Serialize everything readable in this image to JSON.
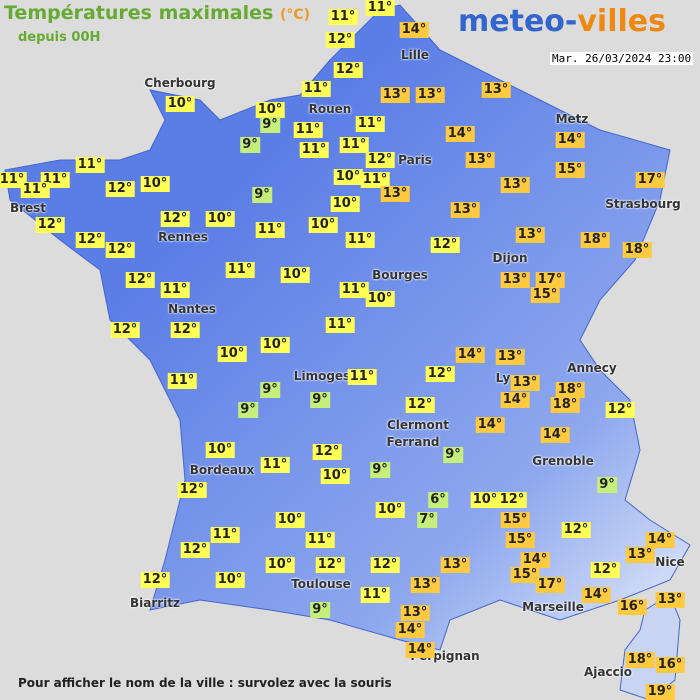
{
  "header": {
    "title": "Températures maximales",
    "unit": "(°C)",
    "subtitle": "depuis 00H"
  },
  "logo": {
    "part1": "meteo-",
    "part2": "villes"
  },
  "timestamp": "Mar. 26/03/2024 23:00",
  "cities": [
    "Lille",
    "Cherbourg",
    "Rouen",
    "Metz",
    "Paris",
    "Brest",
    "Strasbourg",
    "Rennes",
    "Dijon",
    "Bourges",
    "Nantes",
    "Limoges",
    "Ly",
    "Annecy",
    "Clermont",
    "Ferrand",
    "Grenoble",
    "Bordeaux",
    "Nice",
    "Toulouse",
    "Biarritz",
    "Marseille",
    "Perpignan",
    "Ajaccio"
  ],
  "temperatures": [
    "11°",
    "11°",
    "14°",
    "12°",
    "12°",
    "13°",
    "13°",
    "13°",
    "11°",
    "10°",
    "10°",
    "9°",
    "11°",
    "11°",
    "14°",
    "14°",
    "11°",
    "11°",
    "9°",
    "12°",
    "13°",
    "15°",
    "11°",
    "11°",
    "11°",
    "11°",
    "12°",
    "10°",
    "10°",
    "11°",
    "13°",
    "17°",
    "9°",
    "13°",
    "10°",
    "13°",
    "12°",
    "12°",
    "10°",
    "11°",
    "10°",
    "12°",
    "12°",
    "11°",
    "12°",
    "13°",
    "18°",
    "18°",
    "11°",
    "10°",
    "12°",
    "11°",
    "13°",
    "17°",
    "15°",
    "11°",
    "10°",
    "12°",
    "12°",
    "11°",
    "14°",
    "13°",
    "10°",
    "10°",
    "12°",
    "11°",
    "11°",
    "9°",
    "13°",
    "18°",
    "14°",
    "18°",
    "9°",
    "9°",
    "12°",
    "12°",
    "14°",
    "14°",
    "10°",
    "12°",
    "11°",
    "9°",
    "10°",
    "9°",
    "12°",
    "9°",
    "6°",
    "10°",
    "12°",
    "10°",
    "7°",
    "10°",
    "15°",
    "12°",
    "11°",
    "11°",
    "15°",
    "14°",
    "13°",
    "12°",
    "14°",
    "10°",
    "12°",
    "12°",
    "13°",
    "12°",
    "15°",
    "17°",
    "12°",
    "10°",
    "13°",
    "11°",
    "14°",
    "16°",
    "13°",
    "9°",
    "13°",
    "14°",
    "14°",
    "18°",
    "16°",
    "19°"
  ],
  "footer": "Pour afficher le nom de la ville : survolez avec la souris"
}
